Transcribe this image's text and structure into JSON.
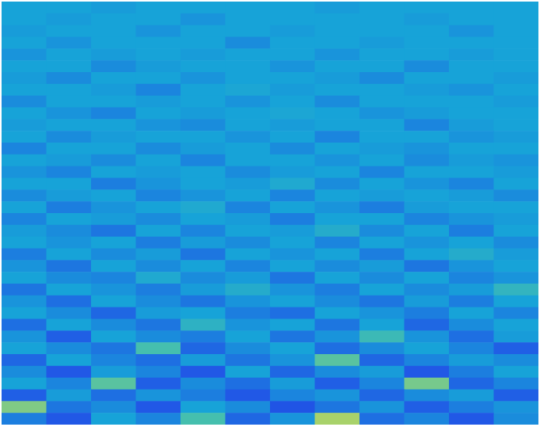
{
  "chart_data": {
    "type": "heatmap",
    "tick_labels": false,
    "zlim": [
      0.3,
      0.8
    ],
    "cells": [
      [
        0.5,
        0.5,
        0.49,
        0.5,
        0.5,
        0.5,
        0.5,
        0.49,
        0.5,
        0.5,
        0.5,
        0.5
      ],
      [
        0.5,
        0.49,
        0.5,
        0.5,
        0.48,
        0.5,
        0.5,
        0.5,
        0.5,
        0.49,
        0.5,
        0.5
      ],
      [
        0.49,
        0.5,
        0.5,
        0.48,
        0.5,
        0.5,
        0.49,
        0.5,
        0.5,
        0.5,
        0.48,
        0.5
      ],
      [
        0.5,
        0.48,
        0.5,
        0.5,
        0.5,
        0.47,
        0.5,
        0.5,
        0.49,
        0.5,
        0.5,
        0.5
      ],
      [
        0.48,
        0.5,
        0.49,
        0.5,
        0.49,
        0.5,
        0.5,
        0.48,
        0.5,
        0.5,
        0.49,
        0.5
      ],
      [
        0.5,
        0.5,
        0.47,
        0.49,
        0.5,
        0.5,
        0.48,
        0.5,
        0.5,
        0.47,
        0.5,
        0.5
      ],
      [
        0.49,
        0.47,
        0.5,
        0.5,
        0.48,
        0.5,
        0.5,
        0.49,
        0.47,
        0.5,
        0.5,
        0.49
      ],
      [
        0.5,
        0.5,
        0.49,
        0.46,
        0.5,
        0.51,
        0.49,
        0.5,
        0.5,
        0.49,
        0.48,
        0.5
      ],
      [
        0.47,
        0.5,
        0.5,
        0.49,
        0.5,
        0.48,
        0.5,
        0.47,
        0.5,
        0.5,
        0.5,
        0.49
      ],
      [
        0.5,
        0.48,
        0.46,
        0.5,
        0.49,
        0.5,
        0.51,
        0.5,
        0.48,
        0.49,
        0.5,
        0.5
      ],
      [
        0.49,
        0.5,
        0.5,
        0.48,
        0.47,
        0.5,
        0.49,
        0.5,
        0.5,
        0.46,
        0.49,
        0.5
      ],
      [
        0.5,
        0.47,
        0.49,
        0.5,
        0.5,
        0.48,
        0.5,
        0.46,
        0.5,
        0.5,
        0.48,
        0.49
      ],
      [
        0.46,
        0.5,
        0.5,
        0.47,
        0.49,
        0.5,
        0.47,
        0.5,
        0.49,
        0.48,
        0.5,
        0.5
      ],
      [
        0.5,
        0.49,
        0.47,
        0.5,
        0.46,
        0.5,
        0.5,
        0.48,
        0.5,
        0.47,
        0.49,
        0.48
      ],
      [
        0.48,
        0.46,
        0.5,
        0.49,
        0.5,
        0.47,
        0.49,
        0.5,
        0.46,
        0.5,
        0.5,
        0.49
      ],
      [
        0.5,
        0.5,
        0.45,
        0.48,
        0.5,
        0.49,
        0.52,
        0.47,
        0.5,
        0.48,
        0.46,
        0.5
      ],
      [
        0.47,
        0.49,
        0.5,
        0.46,
        0.48,
        0.5,
        0.46,
        0.5,
        0.49,
        0.5,
        0.49,
        0.47
      ],
      [
        0.5,
        0.45,
        0.48,
        0.5,
        0.52,
        0.46,
        0.5,
        0.48,
        0.45,
        0.49,
        0.5,
        0.5
      ],
      [
        0.46,
        0.5,
        0.49,
        0.47,
        0.5,
        0.49,
        0.45,
        0.5,
        0.5,
        0.46,
        0.48,
        0.49
      ],
      [
        0.49,
        0.47,
        0.44,
        0.5,
        0.46,
        0.5,
        0.49,
        0.53,
        0.47,
        0.5,
        0.45,
        0.5
      ],
      [
        0.5,
        0.48,
        0.5,
        0.45,
        0.49,
        0.47,
        0.5,
        0.46,
        0.5,
        0.48,
        0.5,
        0.47
      ],
      [
        0.45,
        0.5,
        0.47,
        0.49,
        0.44,
        0.5,
        0.48,
        0.5,
        0.45,
        0.5,
        0.53,
        0.49
      ],
      [
        0.48,
        0.44,
        0.5,
        0.47,
        0.5,
        0.46,
        0.5,
        0.47,
        0.49,
        0.44,
        0.48,
        0.5
      ],
      [
        0.5,
        0.47,
        0.46,
        0.52,
        0.47,
        0.49,
        0.44,
        0.5,
        0.47,
        0.5,
        0.46,
        0.48
      ],
      [
        0.44,
        0.5,
        0.48,
        0.45,
        0.49,
        0.53,
        0.48,
        0.45,
        0.5,
        0.47,
        0.49,
        0.56
      ],
      [
        0.48,
        0.43,
        0.5,
        0.47,
        0.44,
        0.48,
        0.5,
        0.47,
        0.44,
        0.49,
        0.45,
        0.5
      ],
      [
        0.5,
        0.47,
        0.42,
        0.49,
        0.5,
        0.45,
        0.43,
        0.5,
        0.48,
        0.45,
        0.5,
        0.46
      ],
      [
        0.43,
        0.5,
        0.47,
        0.44,
        0.55,
        0.48,
        0.5,
        0.44,
        0.5,
        0.42,
        0.47,
        0.5
      ],
      [
        0.48,
        0.41,
        0.5,
        0.47,
        0.45,
        0.5,
        0.44,
        0.48,
        0.58,
        0.48,
        0.43,
        0.49
      ],
      [
        0.5,
        0.47,
        0.44,
        0.6,
        0.42,
        0.47,
        0.5,
        0.43,
        0.47,
        0.5,
        0.46,
        0.41
      ],
      [
        0.42,
        0.5,
        0.46,
        0.43,
        0.49,
        0.44,
        0.48,
        0.62,
        0.42,
        0.46,
        0.49,
        0.47
      ],
      [
        0.47,
        0.4,
        0.49,
        0.46,
        0.4,
        0.5,
        0.42,
        0.47,
        0.49,
        0.4,
        0.45,
        0.5
      ],
      [
        0.5,
        0.46,
        0.62,
        0.41,
        0.47,
        0.43,
        0.49,
        0.41,
        0.46,
        0.65,
        0.42,
        0.46
      ],
      [
        0.41,
        0.49,
        0.43,
        0.48,
        0.45,
        0.4,
        0.46,
        0.48,
        0.42,
        0.47,
        0.49,
        0.41
      ],
      [
        0.66,
        0.44,
        0.47,
        0.4,
        0.5,
        0.47,
        0.39,
        0.44,
        0.48,
        0.41,
        0.45,
        0.48
      ],
      [
        0.45,
        0.4,
        0.5,
        0.46,
        0.6,
        0.42,
        0.48,
        0.7,
        0.43,
        0.46,
        0.4,
        0.47
      ]
    ]
  }
}
